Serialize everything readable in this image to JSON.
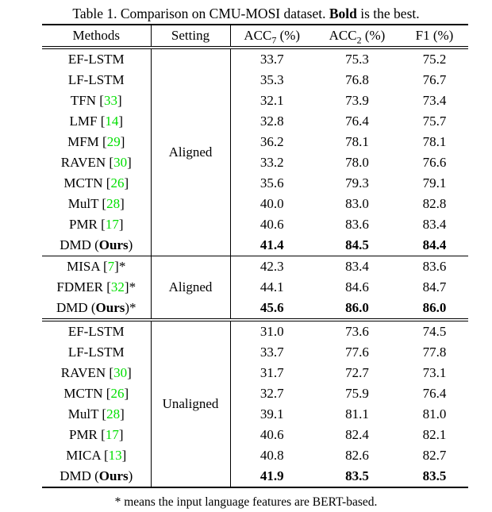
{
  "caption": {
    "prefix": "Table 1. Comparison on CMU-MOSI dataset. ",
    "bold": "Bold",
    "suffix": " is the best."
  },
  "colors": {
    "citation_green": "#00DF00",
    "text_black": "#000000"
  },
  "table": {
    "columns": {
      "methods": "Methods",
      "setting": "Setting",
      "metrics": [
        {
          "base": "ACC",
          "sub": "7",
          "unit": " (%)"
        },
        {
          "base": "ACC",
          "sub": "2",
          "unit": " (%)"
        },
        {
          "base": "F1",
          "sub": "",
          "unit": " (%)"
        }
      ]
    },
    "cite_open": " [",
    "cite_close": "]",
    "blocks": [
      {
        "setting": "Aligned",
        "end_rule": "single",
        "rows": [
          {
            "name": "EF-LSTM",
            "cite": "",
            "star": "",
            "bold": false,
            "values": [
              "33.7",
              "75.3",
              "75.2"
            ]
          },
          {
            "name": "LF-LSTM",
            "cite": "",
            "star": "",
            "bold": false,
            "values": [
              "35.3",
              "76.8",
              "76.7"
            ]
          },
          {
            "name": "TFN",
            "cite": "33",
            "star": "",
            "bold": false,
            "values": [
              "32.1",
              "73.9",
              "73.4"
            ]
          },
          {
            "name": "LMF",
            "cite": "14",
            "star": "",
            "bold": false,
            "values": [
              "32.8",
              "76.4",
              "75.7"
            ]
          },
          {
            "name": "MFM",
            "cite": "29",
            "star": "",
            "bold": false,
            "values": [
              "36.2",
              "78.1",
              "78.1"
            ]
          },
          {
            "name": "RAVEN",
            "cite": "30",
            "star": "",
            "bold": false,
            "values": [
              "33.2",
              "78.0",
              "76.6"
            ]
          },
          {
            "name": "MCTN",
            "cite": "26",
            "star": "",
            "bold": false,
            "values": [
              "35.6",
              "79.3",
              "79.1"
            ]
          },
          {
            "name": "MulT",
            "cite": "28",
            "star": "",
            "bold": false,
            "values": [
              "40.0",
              "83.0",
              "82.8"
            ]
          },
          {
            "name": "PMR",
            "cite": "17",
            "star": "",
            "bold": false,
            "values": [
              "40.6",
              "83.6",
              "83.4"
            ]
          },
          {
            "name": "DMD (",
            "ours": "Ours",
            "name_end": ")",
            "cite": "",
            "star": "",
            "bold": true,
            "values": [
              "41.4",
              "84.5",
              "84.4"
            ]
          }
        ]
      },
      {
        "setting": "Aligned",
        "end_rule": "double",
        "rows": [
          {
            "name": "MISA",
            "cite": "7",
            "star": "*",
            "bold": false,
            "values": [
              "42.3",
              "83.4",
              "83.6"
            ]
          },
          {
            "name": "FDMER",
            "cite": "32",
            "star": "*",
            "bold": false,
            "values": [
              "44.1",
              "84.6",
              "84.7"
            ]
          },
          {
            "name": "DMD (",
            "ours": "Ours",
            "name_end": ")",
            "cite": "",
            "star": "*",
            "bold": true,
            "values": [
              "45.6",
              "86.0",
              "86.0"
            ]
          }
        ]
      },
      {
        "setting": "Unaligned",
        "end_rule": "final",
        "rows": [
          {
            "name": "EF-LSTM",
            "cite": "",
            "star": "",
            "bold": false,
            "values": [
              "31.0",
              "73.6",
              "74.5"
            ]
          },
          {
            "name": "LF-LSTM",
            "cite": "",
            "star": "",
            "bold": false,
            "values": [
              "33.7",
              "77.6",
              "77.8"
            ]
          },
          {
            "name": "RAVEN",
            "cite": "30",
            "star": "",
            "bold": false,
            "values": [
              "31.7",
              "72.7",
              "73.1"
            ]
          },
          {
            "name": "MCTN",
            "cite": "26",
            "star": "",
            "bold": false,
            "values": [
              "32.7",
              "75.9",
              "76.4"
            ]
          },
          {
            "name": "MulT",
            "cite": "28",
            "star": "",
            "bold": false,
            "values": [
              "39.1",
              "81.1",
              "81.0"
            ]
          },
          {
            "name": "PMR",
            "cite": "17",
            "star": "",
            "bold": false,
            "values": [
              "40.6",
              "82.4",
              "82.1"
            ]
          },
          {
            "name": "MICA",
            "cite": "13",
            "star": "",
            "bold": false,
            "values": [
              "40.8",
              "82.6",
              "82.7"
            ]
          },
          {
            "name": "DMD (",
            "ours": "Ours",
            "name_end": ")",
            "cite": "",
            "star": "",
            "bold": true,
            "values": [
              "41.9",
              "83.5",
              "83.5"
            ]
          }
        ]
      }
    ]
  },
  "footnote": "* means the input language features are BERT-based."
}
